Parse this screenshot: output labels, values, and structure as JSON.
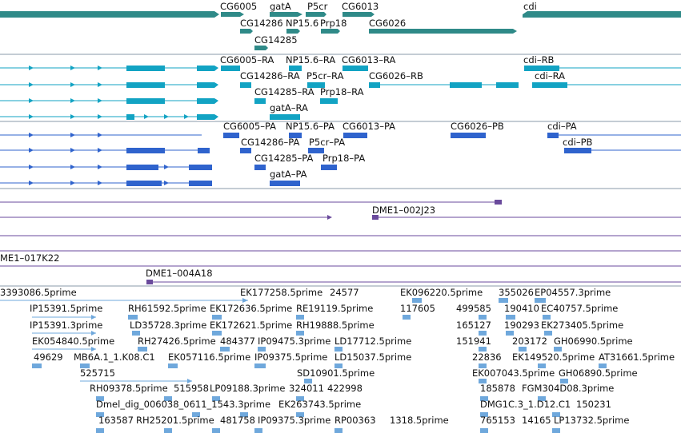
{
  "colors": {
    "gene": "#2f8a88",
    "transcript": "#12a3c3",
    "protein": "#2f63cd",
    "clone": "#6a4a9c",
    "est": "#6fa8dc",
    "separator": "#8a98aa"
  },
  "gene_track": {
    "labels": [
      {
        "id": "cg6005",
        "text": "CG6005"
      },
      {
        "id": "gata",
        "text": "gatA"
      },
      {
        "id": "p5cr",
        "text": "P5cr"
      },
      {
        "id": "cg6013",
        "text": "CG6013"
      },
      {
        "id": "cdi",
        "text": "cdi"
      },
      {
        "id": "cg14286",
        "text": "CG14286"
      },
      {
        "id": "np15_6",
        "text": "NP15.6"
      },
      {
        "id": "prp18",
        "text": "Prp18"
      },
      {
        "id": "cg6026",
        "text": "CG6026"
      },
      {
        "id": "cg14285",
        "text": "CG14285"
      }
    ]
  },
  "transcript_track": {
    "labels": [
      {
        "id": "cg6005-ra",
        "text": "CG6005–RA"
      },
      {
        "id": "np15_6-ra",
        "text": "NP15.6–RA"
      },
      {
        "id": "cg6013-ra",
        "text": "CG6013–RA"
      },
      {
        "id": "cdi-rb",
        "text": "cdi–RB"
      },
      {
        "id": "cg14286-ra",
        "text": "CG14286–RA"
      },
      {
        "id": "p5cr-ra",
        "text": "P5cr–RA"
      },
      {
        "id": "cg6026-rb",
        "text": "CG6026–RB"
      },
      {
        "id": "cdi-ra",
        "text": "cdi–RA"
      },
      {
        "id": "cg14285-ra",
        "text": "CG14285–RA"
      },
      {
        "id": "prp18-ra",
        "text": "Prp18–RA"
      },
      {
        "id": "gata-ra",
        "text": "gatA–RA"
      }
    ]
  },
  "protein_track": {
    "labels": [
      {
        "id": "cg6005-pa",
        "text": "CG6005–PA"
      },
      {
        "id": "np15_6-pa",
        "text": "NP15.6–PA"
      },
      {
        "id": "cg6013-pa",
        "text": "CG6013–PA"
      },
      {
        "id": "cg6026-pb",
        "text": "CG6026–PB"
      },
      {
        "id": "cdi-pa",
        "text": "cdi–PA"
      },
      {
        "id": "cg14286-pa",
        "text": "CG14286–PA"
      },
      {
        "id": "p5cr-pa",
        "text": "P5cr–PA"
      },
      {
        "id": "cdi-pb",
        "text": "cdi–PB"
      },
      {
        "id": "cg14285-pa",
        "text": "CG14285–PA"
      },
      {
        "id": "prp18-pa",
        "text": "Prp18–PA"
      },
      {
        "id": "gata-pa",
        "text": "gatA–PA"
      }
    ]
  },
  "clone_track": {
    "labels": [
      {
        "id": "dme1-002j23",
        "text": "DME1–002J23"
      },
      {
        "id": "dme1-017k22",
        "text": "ME1–017K22"
      },
      {
        "id": "dme1-004a18",
        "text": "DME1–004A18"
      }
    ]
  },
  "est_track": {
    "labels": [
      {
        "id": "e1",
        "text": "3393086.5prime"
      },
      {
        "id": "e2",
        "text": "EK177258.5prime"
      },
      {
        "id": "e3",
        "text": "24577"
      },
      {
        "id": "e4",
        "text": "EK096220.5prime"
      },
      {
        "id": "e5",
        "text": "355026"
      },
      {
        "id": "e6",
        "text": "EP04557.3prime"
      },
      {
        "id": "e7",
        "text": "IP15391.5prime"
      },
      {
        "id": "e8",
        "text": "RH61592.5prime"
      },
      {
        "id": "e9",
        "text": "EK172636.5prime"
      },
      {
        "id": "e10",
        "text": "RE19119.5prime"
      },
      {
        "id": "e11",
        "text": "117605"
      },
      {
        "id": "e12",
        "text": "499585"
      },
      {
        "id": "e13",
        "text": "190410"
      },
      {
        "id": "e14",
        "text": "EC40757.5prime"
      },
      {
        "id": "e15",
        "text": "IP15391.3prime"
      },
      {
        "id": "e16",
        "text": "LD35728.3prime"
      },
      {
        "id": "e17",
        "text": "EK172621.5prime"
      },
      {
        "id": "e18",
        "text": "RH19888.5prime"
      },
      {
        "id": "e19",
        "text": "165127"
      },
      {
        "id": "e20",
        "text": "190293"
      },
      {
        "id": "e21",
        "text": "EK273405.5prime"
      },
      {
        "id": "e22",
        "text": "EK054840.5prime"
      },
      {
        "id": "e23",
        "text": "RH27426.5prime"
      },
      {
        "id": "e24",
        "text": "484377"
      },
      {
        "id": "e25",
        "text": "IP09475.3prime"
      },
      {
        "id": "e26",
        "text": "LD17712.5prime"
      },
      {
        "id": "e27",
        "text": "151941"
      },
      {
        "id": "e28",
        "text": "203172"
      },
      {
        "id": "e29",
        "text": "GH06990.5prime"
      },
      {
        "id": "e30",
        "text": "49629"
      },
      {
        "id": "e31",
        "text": "MB6A.1_1.K08.C1"
      },
      {
        "id": "e32",
        "text": "EK057116.5prime"
      },
      {
        "id": "e33",
        "text": "IP09375.5prime"
      },
      {
        "id": "e34",
        "text": "LD15037.5prime"
      },
      {
        "id": "e35",
        "text": "22836"
      },
      {
        "id": "e36",
        "text": "EK149520.5prime"
      },
      {
        "id": "e37",
        "text": "AT31661.5prime"
      },
      {
        "id": "e38",
        "text": "525715"
      },
      {
        "id": "e39",
        "text": "SD10901.5prime"
      },
      {
        "id": "e40",
        "text": "EK007043.5prime"
      },
      {
        "id": "e41",
        "text": "GH06890.5prime"
      },
      {
        "id": "e42",
        "text": "RH09378.5prime"
      },
      {
        "id": "e43",
        "text": "515958"
      },
      {
        "id": "e44",
        "text": "LP09188.3prime"
      },
      {
        "id": "e45",
        "text": "324011"
      },
      {
        "id": "e46",
        "text": "422998"
      },
      {
        "id": "e47",
        "text": "185878"
      },
      {
        "id": "e48",
        "text": "FGM304D08.3prime"
      },
      {
        "id": "e49",
        "text": "Dmel_dig_006038_0611_1543.3prime"
      },
      {
        "id": "e50",
        "text": "EK263743.5prime"
      },
      {
        "id": "e51",
        "text": "DMG1C.3_1.D12.C1"
      },
      {
        "id": "e52",
        "text": "150231"
      },
      {
        "id": "e53",
        "text": "163587"
      },
      {
        "id": "e54",
        "text": "RH25201.5prime"
      },
      {
        "id": "e55",
        "text": "481758"
      },
      {
        "id": "e56",
        "text": "IP09375.3prime"
      },
      {
        "id": "e57",
        "text": "RP00363"
      },
      {
        "id": "e58",
        "text": "1318.5prime"
      },
      {
        "id": "e59",
        "text": "765153"
      },
      {
        "id": "e60",
        "text": "14165"
      },
      {
        "id": "e61",
        "text": "LP13732.5prime"
      }
    ]
  }
}
